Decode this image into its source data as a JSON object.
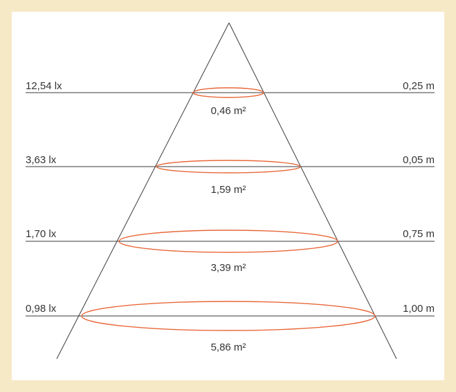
{
  "colors": {
    "background": "#f6e9c6",
    "panel": "#ffffff",
    "line": "#3a3a3a",
    "ellipse": "#e8683a",
    "text": "#333333"
  },
  "levels": [
    {
      "illuminance": "12,54 lx",
      "distance": "0,25 m",
      "area": "0,46 m²"
    },
    {
      "illuminance": "3,63 lx",
      "distance": "0,05 m",
      "area": "1,59 m²"
    },
    {
      "illuminance": "1,70 lx",
      "distance": "0,75 m",
      "area": "3,39 m²"
    },
    {
      "illuminance": "0,98 lx",
      "distance": "1,00 m",
      "area": "5,86 m²"
    }
  ]
}
